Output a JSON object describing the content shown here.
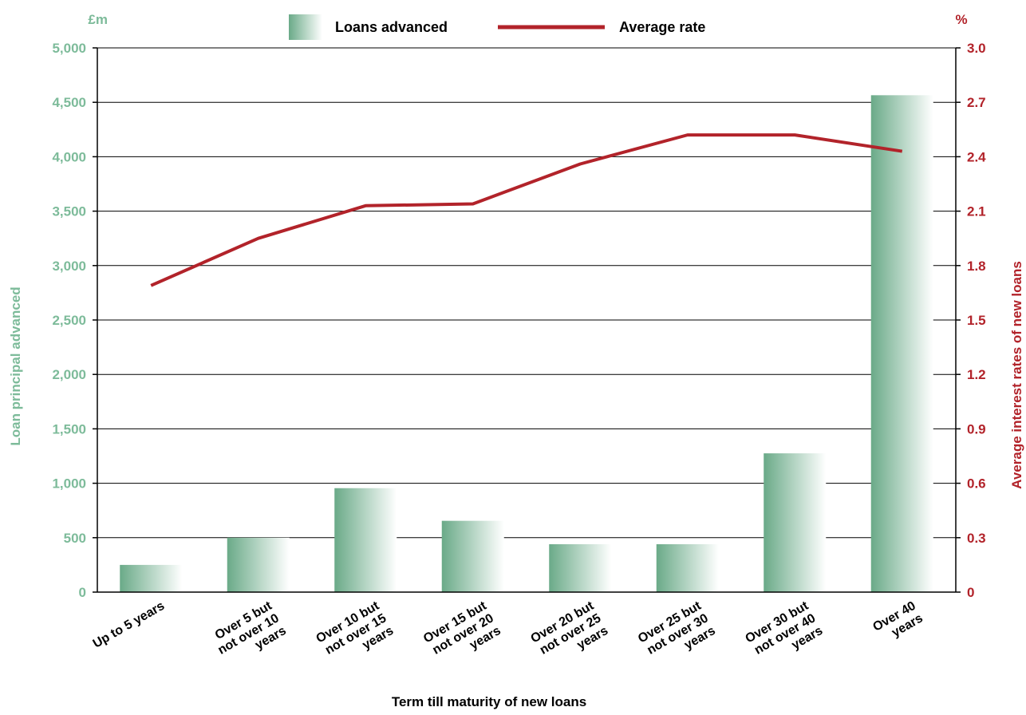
{
  "chart_data": {
    "type": "bar",
    "categories": [
      [
        "Up to 5 years"
      ],
      [
        "Over 5 but",
        "not over 10",
        "years"
      ],
      [
        "Over 10 but",
        "not over 15",
        "years"
      ],
      [
        "Over 15 but",
        "not over 20",
        "years"
      ],
      [
        "Over 20 but",
        "not over 25",
        "years"
      ],
      [
        "Over 25 but",
        "not over 30",
        "years"
      ],
      [
        "Over 30 but",
        "not over 40",
        "years"
      ],
      [
        "Over 40",
        "years"
      ]
    ],
    "series": [
      {
        "name": "Loans advanced",
        "type": "bar",
        "axis": "left",
        "values": [
          250,
          500,
          955,
          655,
          440,
          440,
          1275,
          4565
        ]
      },
      {
        "name": "Average rate",
        "type": "line",
        "axis": "right",
        "values": [
          1.69,
          1.95,
          2.13,
          2.14,
          2.36,
          2.52,
          2.52,
          2.43
        ]
      }
    ],
    "xlabel": "Term till maturity of new loans",
    "ylabel_left": "Loan principal advanced",
    "ylabel_right": "Average interest rates of new loans",
    "unit_left": "£m",
    "unit_right": "%",
    "ylim_left": [
      0,
      5000
    ],
    "ylim_right": [
      0,
      3.0
    ],
    "yticks_left": [
      "0",
      "500",
      "1,000",
      "1,500",
      "2,000",
      "2,500",
      "3,000",
      "3,500",
      "4,000",
      "4,500",
      "5,000"
    ],
    "yticks_right": [
      "0",
      "0.3",
      "0.6",
      "0.9",
      "1.2",
      "1.5",
      "1.8",
      "2.1",
      "2.4",
      "2.7",
      "3.0"
    ],
    "grid": true,
    "legend_position": "top-center"
  },
  "colors": {
    "bar_dark": "#6aaa88",
    "bar_light": "#ffffff",
    "left_axis_text": "#7dbb9a",
    "line": "#b2232a",
    "right_axis_text": "#b2232a",
    "grid": "#000000",
    "text": "#000000"
  }
}
